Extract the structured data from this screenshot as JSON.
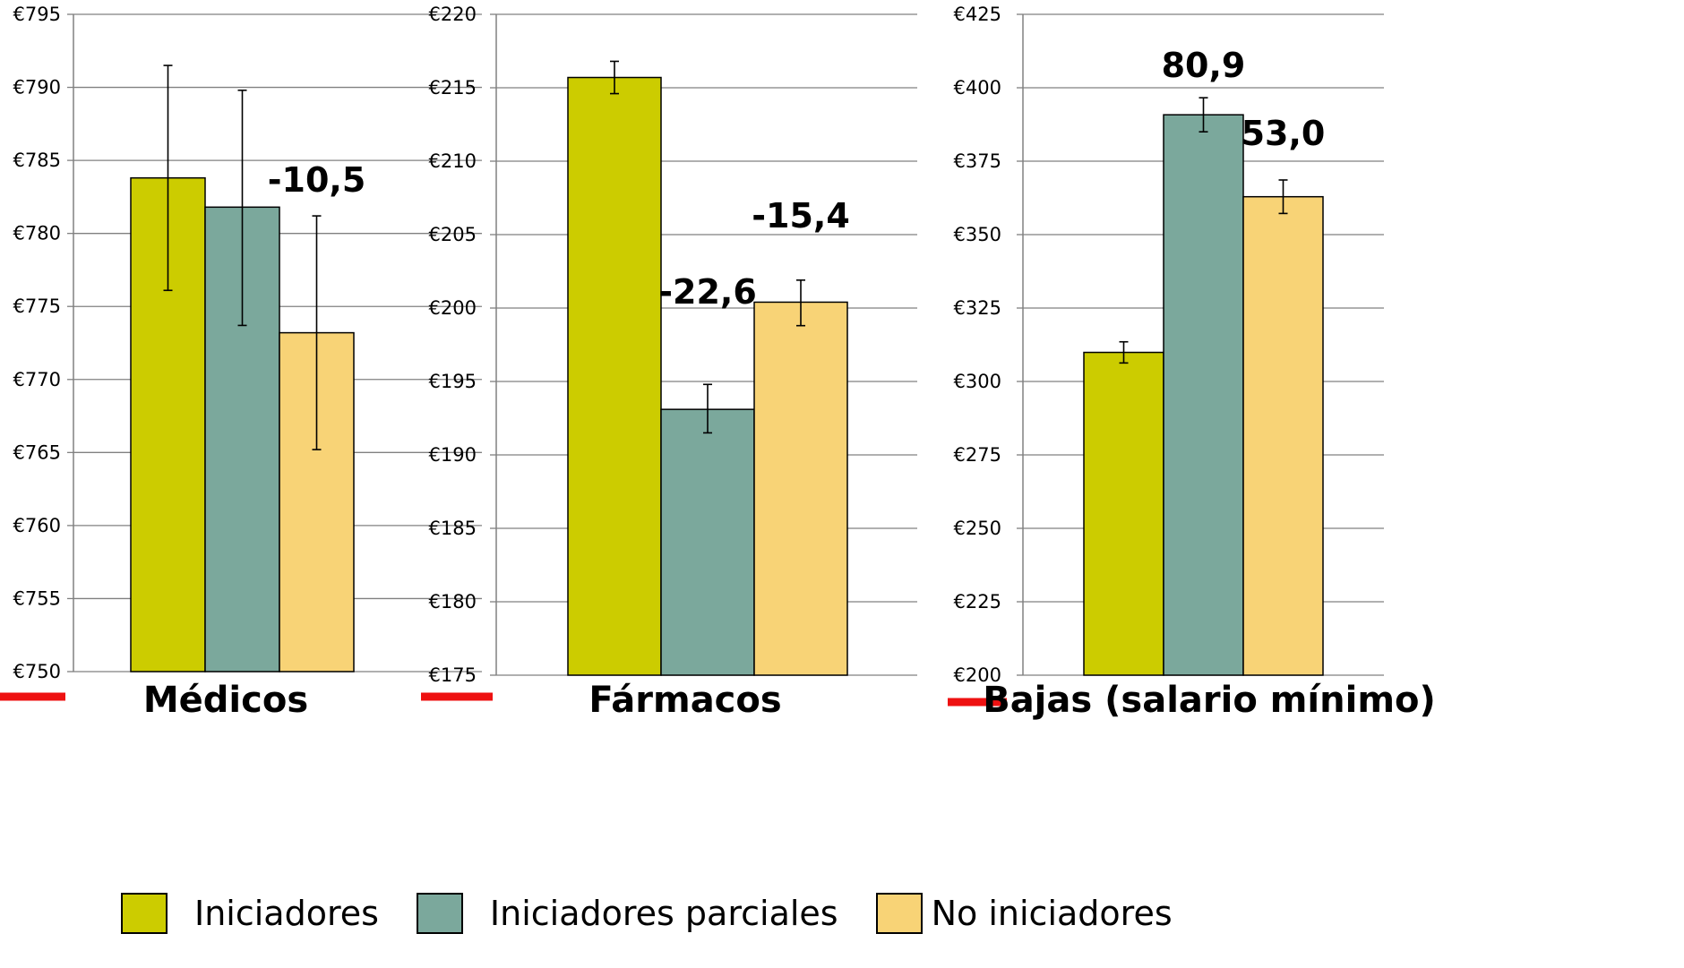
{
  "chart_data": [
    {
      "type": "bar",
      "title": "Médicos",
      "categories": [
        "Iniciadores",
        "Iniciadores parciales",
        "No iniciadores"
      ],
      "values": [
        783.8,
        781.8,
        773.2
      ],
      "error_low": [
        776.1,
        773.7,
        765.2
      ],
      "error_high": [
        791.5,
        789.8,
        781.2
      ],
      "ylim": [
        750,
        795
      ],
      "yticks": [
        750,
        755,
        760,
        765,
        770,
        775,
        780,
        785,
        790,
        795
      ],
      "tick_labels": [
        "€750",
        "€755",
        "€760",
        "€765",
        "€770",
        "€775",
        "€780",
        "€785",
        "€790",
        "€795"
      ],
      "annotations": [
        {
          "text": "-10,5",
          "category": "No iniciadores"
        }
      ],
      "grid": true
    },
    {
      "type": "bar",
      "title": "Fármacos",
      "categories": [
        "Iniciadores",
        "Iniciadores parciales",
        "No iniciadores"
      ],
      "values": [
        215.7,
        193.1,
        200.4
      ],
      "error_low": [
        214.6,
        191.5,
        198.8
      ],
      "error_high": [
        216.8,
        194.8,
        201.9
      ],
      "ylim": [
        175,
        220
      ],
      "yticks": [
        175,
        180,
        185,
        190,
        195,
        200,
        205,
        210,
        215,
        220
      ],
      "tick_labels": [
        "€175",
        "€180",
        "€185",
        "€190",
        "€195",
        "€200",
        "€205",
        "€210",
        "€215",
        "€220"
      ],
      "annotations": [
        {
          "text": "-22,6",
          "category": "Iniciadores parciales"
        },
        {
          "text": "-15,4",
          "category": "No iniciadores"
        }
      ],
      "grid": true
    },
    {
      "type": "bar",
      "title": "Bajas (salario mínimo)",
      "categories": [
        "Iniciadores",
        "Iniciadores parciales",
        "No iniciadores"
      ],
      "values": [
        309.9,
        390.8,
        362.9
      ],
      "error_low": [
        306.3,
        385.0,
        357.2
      ],
      "error_high": [
        313.5,
        396.6,
        368.6
      ],
      "ylim": [
        200,
        425
      ],
      "yticks": [
        200,
        225,
        250,
        275,
        300,
        325,
        350,
        375,
        400,
        425
      ],
      "tick_labels": [
        "€200",
        "€225",
        "€250",
        "€275",
        "€300",
        "€325",
        "€350",
        "€375",
        "€400",
        "€425"
      ],
      "annotations": [
        {
          "text": "80,9",
          "category": "Iniciadores parciales"
        },
        {
          "text": "53,0",
          "category": "No iniciadores"
        }
      ],
      "grid": true
    }
  ],
  "legend": {
    "placement": "bottom",
    "items": [
      {
        "label": "Iniciadores",
        "color": "#cccc00"
      },
      {
        "label": "Iniciadores parciales",
        "color": "#7ba89c"
      },
      {
        "label": "No iniciadores",
        "color": "#f8d376"
      }
    ]
  },
  "colors": {
    "series": [
      "#cccc00",
      "#7ba89c",
      "#f8d376"
    ],
    "grid": "#808080",
    "marker": "#ee1111"
  }
}
